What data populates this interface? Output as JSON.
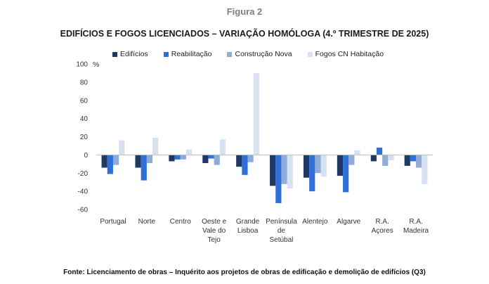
{
  "figure_label": "Figura 2",
  "source": "Fonte: Licenciamento de obras – Inquérito aos projetos de obras de edificação e demolição de edifícios (Q3)",
  "chart_data": {
    "type": "bar",
    "title": "EDIFÍCIOS E FOGOS LICENCIADOS – VARIAÇÃO HOMÓLOGA (4.º TRIMESTRE DE 2025)",
    "ylabel": "%",
    "xlabel": "",
    "ylim": [
      -60,
      100
    ],
    "yticks": [
      "100",
      "80",
      "60",
      "40",
      "20",
      "0",
      "-20",
      "-40",
      "-60"
    ],
    "grid": false,
    "legend_position": "top",
    "categories": [
      [
        "Portugal"
      ],
      [
        "Norte"
      ],
      [
        "Centro"
      ],
      [
        "Oeste e",
        "Vale do",
        "Tejo"
      ],
      [
        "Grande",
        "Lisboa"
      ],
      [
        "Península",
        "de",
        "Setúbal"
      ],
      [
        "Alentejo"
      ],
      [
        "Algarve"
      ],
      [
        "R.A.",
        "Açores"
      ],
      [
        "R.A.",
        "Madeira"
      ]
    ],
    "series": [
      {
        "name": "Edifícios",
        "color": "#1f3864",
        "values": [
          -14,
          -14,
          -7,
          -9,
          -13,
          -34,
          -25,
          -23,
          -7,
          -12
        ]
      },
      {
        "name": "Reabilitação",
        "color": "#2e6fd8",
        "values": [
          -21,
          -28,
          -5,
          -4,
          -22,
          -53,
          -40,
          -41,
          8,
          -7
        ]
      },
      {
        "name": "Construção Nova",
        "color": "#8fabd8",
        "values": [
          -11,
          -9,
          -5,
          -11,
          -8,
          -32,
          -20,
          -11,
          -12,
          -14
        ]
      },
      {
        "name": "Fogos CN Habitação",
        "color": "#d6e1f2",
        "values": [
          16,
          19,
          6,
          17,
          90,
          -37,
          -24,
          5,
          -6,
          -32
        ]
      }
    ]
  }
}
